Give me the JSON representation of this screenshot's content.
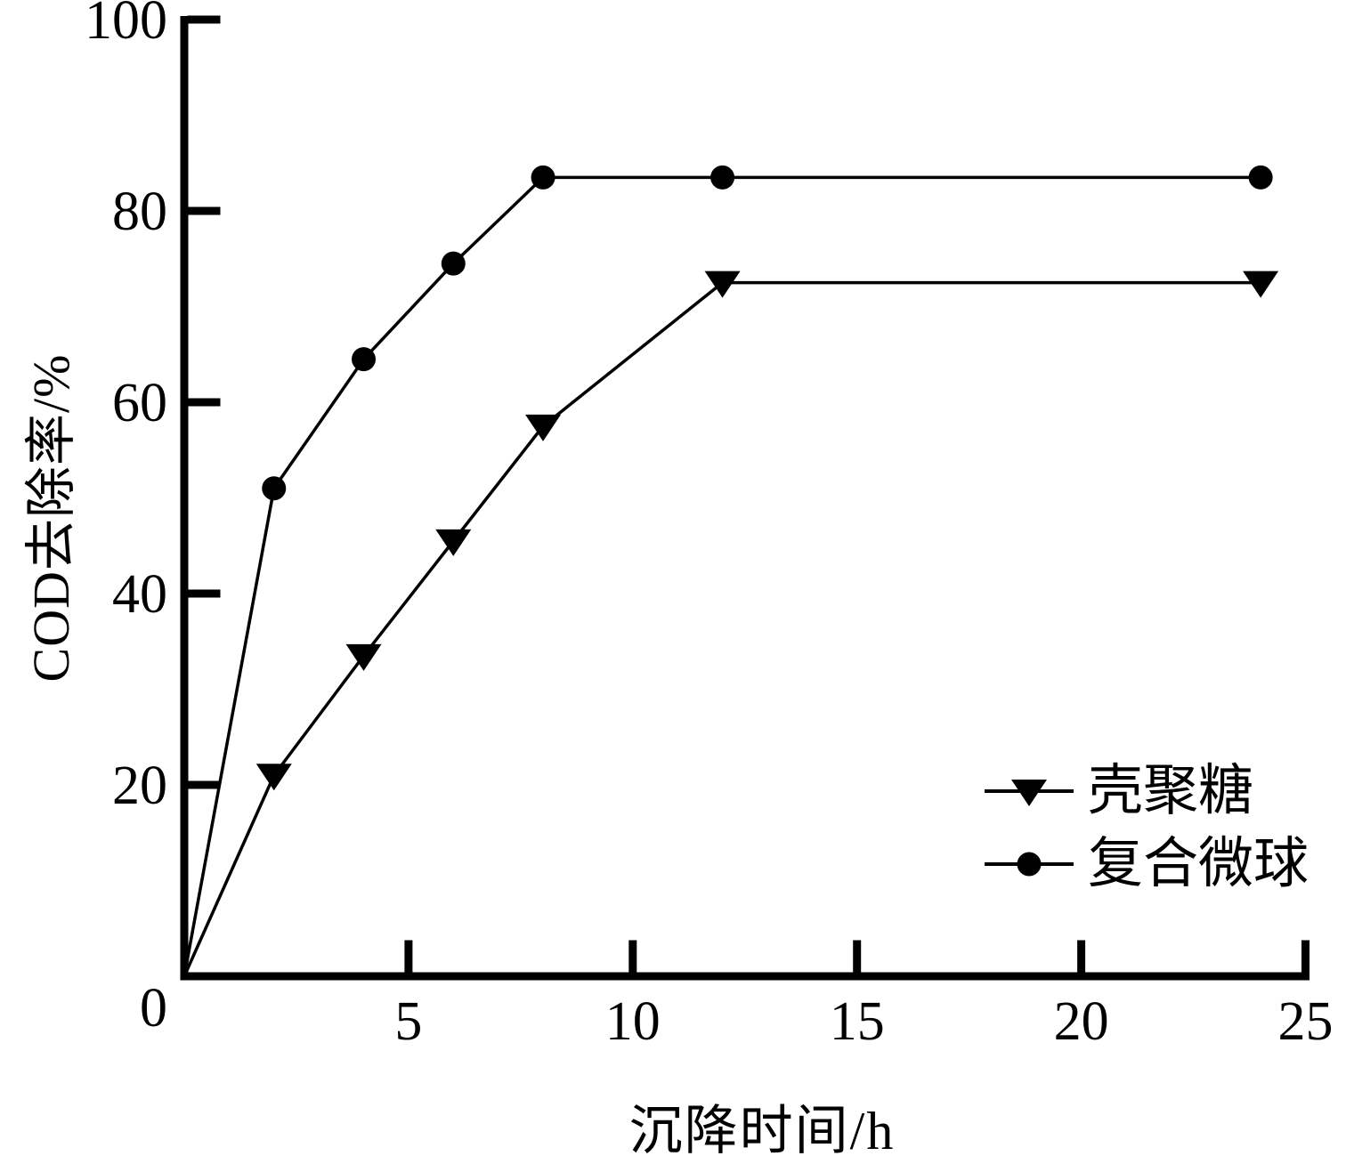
{
  "chart_data": {
    "type": "line",
    "title": "",
    "xlabel": "沉降时间/h",
    "ylabel": "COD去除率/%",
    "xlim": [
      0,
      25
    ],
    "ylim": [
      0,
      100
    ],
    "x_ticks": [
      5,
      10,
      15,
      20,
      25
    ],
    "y_ticks": [
      0,
      20,
      40,
      60,
      80,
      100
    ],
    "grid": false,
    "legend_position": "inside-right-bottom",
    "x": [
      0,
      2,
      4,
      6,
      8,
      12,
      24
    ],
    "series": [
      {
        "name": "壳聚糖",
        "marker": "triangle-down",
        "values": [
          0,
          21,
          33.5,
          45.5,
          57.5,
          72.5,
          72.5
        ]
      },
      {
        "name": "复合微球",
        "marker": "circle",
        "values": [
          0,
          51,
          64.5,
          74.5,
          83.5,
          83.5,
          83.5
        ]
      }
    ],
    "colors": {
      "line": "#000000",
      "marker": "#000000",
      "background": "#ffffff"
    }
  }
}
